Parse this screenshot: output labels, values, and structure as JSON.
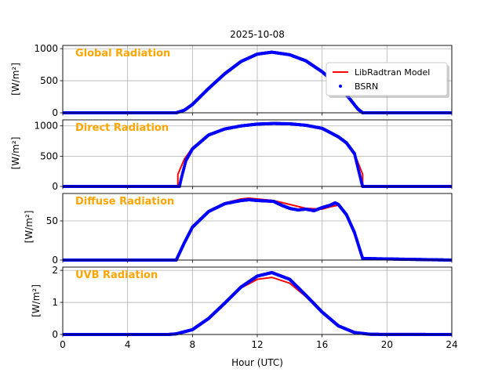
{
  "chart_data": {
    "type": "line",
    "title": "2025-10-08",
    "xlabel": "Hour (UTC)",
    "xlim": [
      0,
      24
    ],
    "xticks": [
      0,
      4,
      8,
      12,
      16,
      20,
      24
    ],
    "grid": true,
    "legend": {
      "placement": "top-right of first panel",
      "entries": [
        {
          "name": "LibRadtran Model",
          "color": "#ff0000",
          "style": "line"
        },
        {
          "name": "BSRN",
          "color": "#0000ff",
          "style": "marker"
        }
      ]
    },
    "panels": [
      {
        "label": "Global Radiation",
        "ylabel": "[W/m²]",
        "ylim": [
          0,
          1050
        ],
        "yticks": [
          0,
          500,
          1000
        ],
        "series": [
          {
            "name": "LibRadtran Model",
            "color": "#ff0000",
            "x": [
              0,
              7.0,
              7.5,
              8,
              9,
              10,
              11,
              12,
              12.9,
              14,
              15,
              16,
              17,
              17.7,
              18.2,
              18.5,
              24
            ],
            "y": [
              0,
              0,
              40,
              130,
              380,
              610,
              800,
              915,
              945,
              905,
              810,
              640,
              420,
              220,
              60,
              0,
              0
            ]
          },
          {
            "name": "BSRN",
            "color": "#0000ff",
            "x": [
              0,
              7.0,
              7.5,
              8,
              9,
              10,
              11,
              12,
              12.9,
              14,
              15,
              16,
              17,
              17.7,
              18.2,
              18.5,
              24
            ],
            "y": [
              0,
              0,
              40,
              130,
              380,
              610,
              800,
              915,
              945,
              905,
              810,
              640,
              420,
              220,
              60,
              0,
              0
            ]
          }
        ]
      },
      {
        "label": "Direct Radiation",
        "ylabel": "[W/m²]",
        "ylim": [
          0,
          1100
        ],
        "yticks": [
          0,
          500,
          1000
        ],
        "series": [
          {
            "name": "LibRadtran Model",
            "color": "#ff0000",
            "x": [
              0,
              7.1,
              7.1,
              7.5,
              8,
              9,
              10,
              11,
              12,
              13,
              14,
              15,
              16,
              17,
              17.5,
              18,
              18.5,
              18.5,
              24
            ],
            "y": [
              0,
              0,
              200,
              450,
              640,
              850,
              950,
              1000,
              1030,
              1040,
              1035,
              1010,
              960,
              820,
              720,
              540,
              200,
              0,
              0
            ]
          },
          {
            "name": "BSRN",
            "color": "#0000ff",
            "x": [
              0,
              7.2,
              7.3,
              7.6,
              8,
              9,
              10,
              11,
              12,
              13,
              14,
              15,
              16,
              17,
              17.5,
              18,
              18.4,
              18.5,
              24
            ],
            "y": [
              0,
              0,
              120,
              430,
              620,
              850,
              950,
              1000,
              1030,
              1040,
              1035,
              1010,
              960,
              820,
              720,
              540,
              100,
              0,
              0
            ]
          }
        ]
      },
      {
        "label": "Diffuse Radiation",
        "ylabel": "[W/m²]",
        "ylim": [
          0,
          85
        ],
        "yticks": [
          0,
          50
        ],
        "series": [
          {
            "name": "LibRadtran Model",
            "color": "#ff0000",
            "x": [
              0,
              7.0,
              7.5,
              8,
              9,
              10,
              11,
              11.5,
              12,
              13,
              14,
              15,
              16,
              16.5,
              17,
              17.5,
              18,
              18.5,
              24
            ],
            "y": [
              0,
              0,
              22,
              42,
              62,
              73,
              78,
              79,
              78,
              76,
              71,
              66,
              65,
              68,
              70,
              58,
              35,
              2,
              0
            ]
          },
          {
            "name": "BSRN",
            "color": "#0000ff",
            "x": [
              0,
              7.0,
              7.5,
              8,
              9,
              10,
              11,
              11.5,
              12,
              13,
              13.5,
              14,
              14.5,
              15,
              15.5,
              16,
              16.5,
              16.8,
              17,
              17.5,
              18,
              18.5,
              24
            ],
            "y": [
              0,
              0,
              22,
              42,
              62,
              72,
              76,
              77,
              76,
              75,
              70,
              66,
              64,
              65,
              63,
              67,
              70,
              73,
              71,
              58,
              35,
              2,
              0
            ]
          }
        ]
      },
      {
        "label": "UVB Radiation",
        "ylabel": "[W/m²]",
        "ylim": [
          0,
          2.1
        ],
        "yticks": [
          0,
          1,
          2
        ],
        "series": [
          {
            "name": "LibRadtran Model",
            "color": "#ff0000",
            "x": [
              0,
              6.5,
              7,
              8,
              9,
              10,
              11,
              12,
              12.9,
              14,
              15,
              16,
              17,
              18,
              19,
              24
            ],
            "y": [
              0,
              0,
              0.02,
              0.15,
              0.5,
              0.98,
              1.45,
              1.72,
              1.78,
              1.6,
              1.18,
              0.68,
              0.26,
              0.06,
              0.005,
              0
            ]
          },
          {
            "name": "BSRN",
            "color": "#0000ff",
            "x": [
              0,
              6.5,
              7,
              8,
              9,
              10,
              11,
              12,
              12.9,
              14,
              15,
              16,
              17,
              18,
              19,
              24
            ],
            "y": [
              0,
              0,
              0.02,
              0.15,
              0.5,
              0.98,
              1.48,
              1.82,
              1.93,
              1.72,
              1.22,
              0.7,
              0.27,
              0.06,
              0.005,
              0
            ]
          }
        ]
      }
    ]
  }
}
